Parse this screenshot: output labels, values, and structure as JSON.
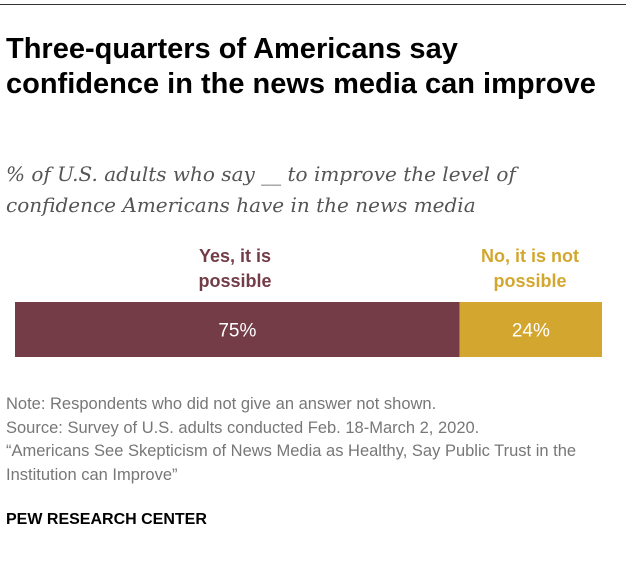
{
  "title": "Three-quarters of Americans say confidence in the news media can improve",
  "subtitle": "% of U.S. adults who say __ to improve the level of confidence Americans have in the news media",
  "chart_data": {
    "type": "bar",
    "orientation": "horizontal-stacked",
    "categories": [
      ""
    ],
    "series": [
      {
        "name": "Yes, it is possible",
        "values": [
          75
        ],
        "label": "75%",
        "color": "#733C47"
      },
      {
        "name": "No, it is not possible",
        "values": [
          24
        ],
        "label": "24%",
        "color": "#D3A72F"
      }
    ],
    "xlim": [
      0,
      99
    ],
    "grid": false,
    "legend": "above-bar"
  },
  "labels": {
    "yes_line1": "Yes, it is",
    "yes_line2": "possible",
    "no_line1": "No, it is not",
    "no_line2": "possible"
  },
  "notes": [
    "Note: Respondents who did not give an answer not shown.",
    "Source: Survey of U.S. adults conducted Feb. 18-March 2, 2020.",
    "“Americans See Skepticism of News Media as Healthy, Say Public Trust in the Institution can Improve”"
  ],
  "source_logo": "PEW RESEARCH CENTER"
}
